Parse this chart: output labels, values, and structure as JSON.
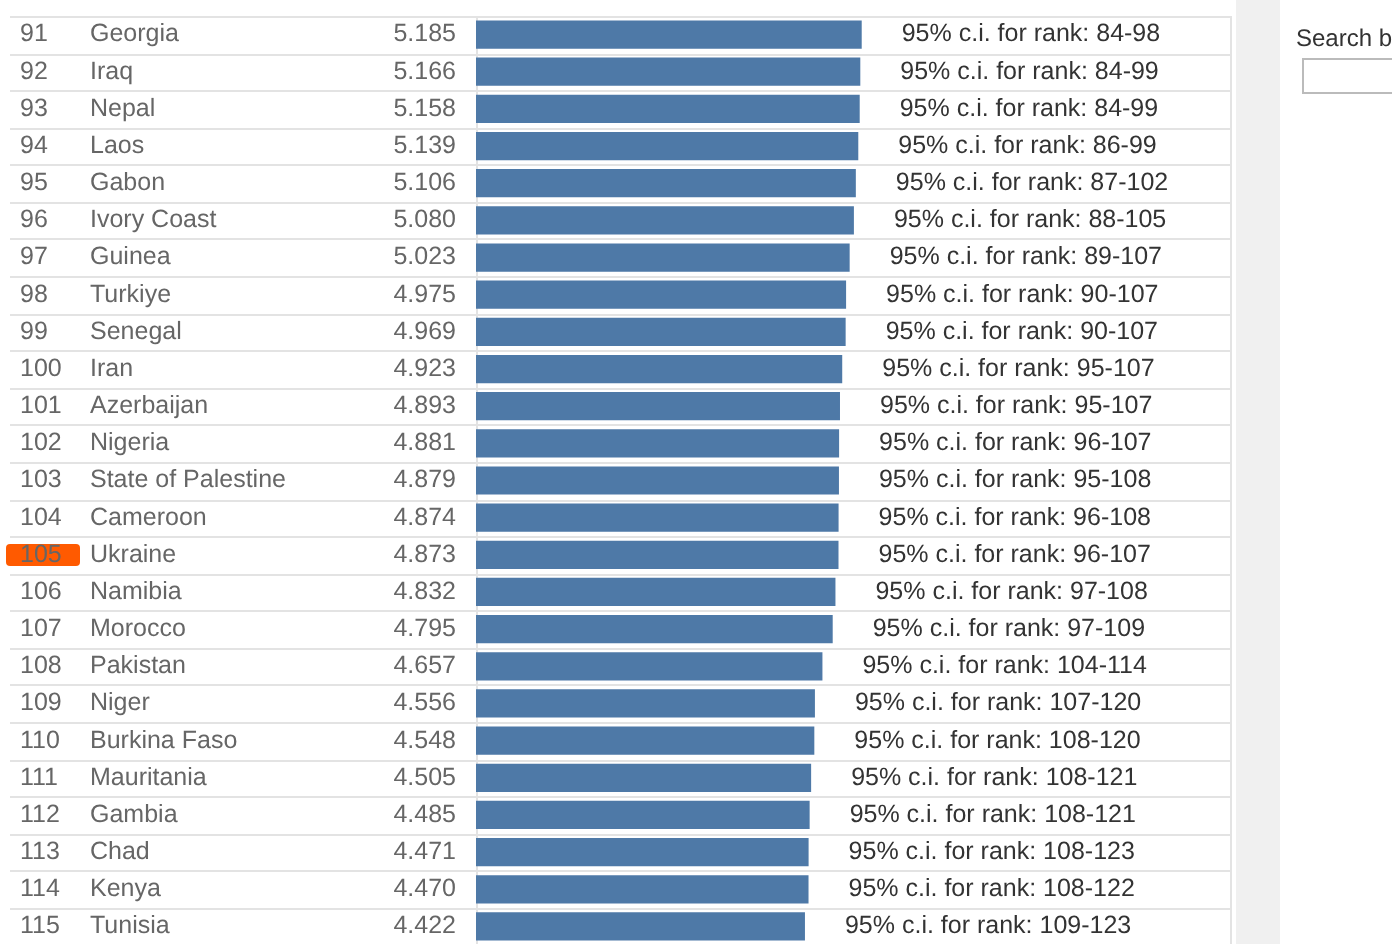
{
  "chart_data": {
    "type": "bar",
    "orientation": "horizontal",
    "grid": "y",
    "legend": false,
    "color": "#4e79a7",
    "categories": [
      "Georgia",
      "Iraq",
      "Nepal",
      "Laos",
      "Gabon",
      "Ivory Coast",
      "Guinea",
      "Turkiye",
      "Senegal",
      "Iran",
      "Azerbaijan",
      "Nigeria",
      "State of Palestine",
      "Cameroon",
      "Ukraine",
      "Namibia",
      "Morocco",
      "Pakistan",
      "Niger",
      "Burkina Faso",
      "Mauritania",
      "Gambia",
      "Chad",
      "Kenya",
      "Tunisia"
    ],
    "values": [
      5.185,
      5.166,
      5.158,
      5.139,
      5.106,
      5.08,
      5.023,
      4.975,
      4.969,
      4.923,
      4.893,
      4.881,
      4.879,
      4.874,
      4.873,
      4.832,
      4.795,
      4.657,
      4.556,
      4.548,
      4.505,
      4.485,
      4.471,
      4.47,
      4.422
    ],
    "value_labels": [
      "5.185",
      "5.166",
      "5.158",
      "5.139",
      "5.106",
      "5.080",
      "5.023",
      "4.975",
      "4.969",
      "4.923",
      "4.893",
      "4.881",
      "4.879",
      "4.874",
      "4.873",
      "4.832",
      "4.795",
      "4.657",
      "4.556",
      "4.548",
      "4.505",
      "4.485",
      "4.471",
      "4.470",
      "4.422"
    ],
    "annotations": [
      "91",
      "95% c.i. for rank: 84-98",
      "92",
      "95% c.i. for rank: 84-99",
      "93",
      "95% c.i. for rank: 84-99",
      "94",
      "95% c.i. for rank: 86-99",
      "95",
      "95% c.i. for rank: 87-102",
      "96",
      "95% c.i. for rank: 88-105",
      "97",
      "95% c.i. for rank: 89-107",
      "98",
      "95% c.i. for rank: 90-107",
      "99",
      "95% c.i. for rank: 90-107",
      "100",
      "95% c.i. for rank: 95-107",
      "101",
      "95% c.i. for rank: 95-107",
      "102",
      "95% c.i. for rank: 96-107",
      "103",
      "95% c.i. for rank: 95-108",
      "104",
      "95% c.i. for rank: 96-108",
      "105",
      "95% c.i. for rank: 96-107",
      "106",
      "95% c.i. for rank: 97-108",
      "107",
      "95% c.i. for rank: 97-109",
      "108",
      "95% c.i. for rank: 104-114",
      "109",
      "95% c.i. for rank: 107-120",
      "110",
      "95% c.i. for rank: 108-120",
      "111",
      "95% c.i. for rank: 108-121",
      "112",
      "95% c.i. for rank: 108-121",
      "113",
      "95% c.i. for rank: 108-123",
      "114",
      "95% c.i. for rank: 108-122",
      "115",
      "95% c.i. for rank: 109-123",
      "Search b"
    ]
  }
}
